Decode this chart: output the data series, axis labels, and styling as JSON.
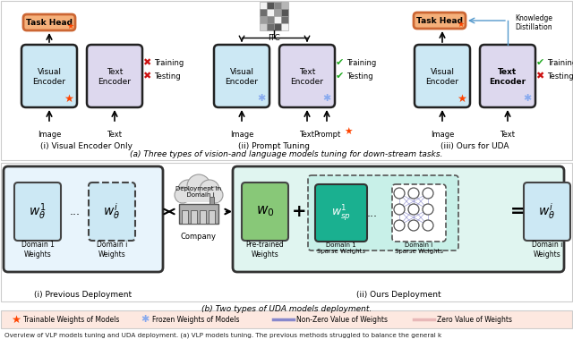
{
  "bg_color": "#ffffff",
  "light_blue": "#cce8f4",
  "light_purple": "#ddd8ee",
  "task_head_color": "#f5b07a",
  "task_head_border": "#cc6633",
  "green_check": "#22aa22",
  "red_x": "#cc1111",
  "blue_arrow": "#5599cc",
  "teal_box": "#1ab090",
  "green_box": "#88c878",
  "section_a_label": "(a) Three types of vision-and language models tuning for down-stream tasks.",
  "section_b_label": "(b) Two types of UDA models deployment.",
  "bottom_caption": "Overview of VLP models tuning and UDA deployment. (a) VLP models tuning. The previous methods struggled to balance the general k",
  "part_i_label": "(i) Visual Encoder Only",
  "part_ii_label": "(ii) Prompt Tuning",
  "part_iii_label": "(iii) Ours for UDA",
  "prev_deploy_label": "(i) Previous Deployment",
  "ours_deploy_label": "(ii) Ours Deployment",
  "legend_trainable": "Trainable Weights of Models",
  "legend_frozen": "Frozen Weights of Models",
  "legend_nonzero": "Non-Zero Value of Weights",
  "legend_zero": "Zero Value of Weights"
}
